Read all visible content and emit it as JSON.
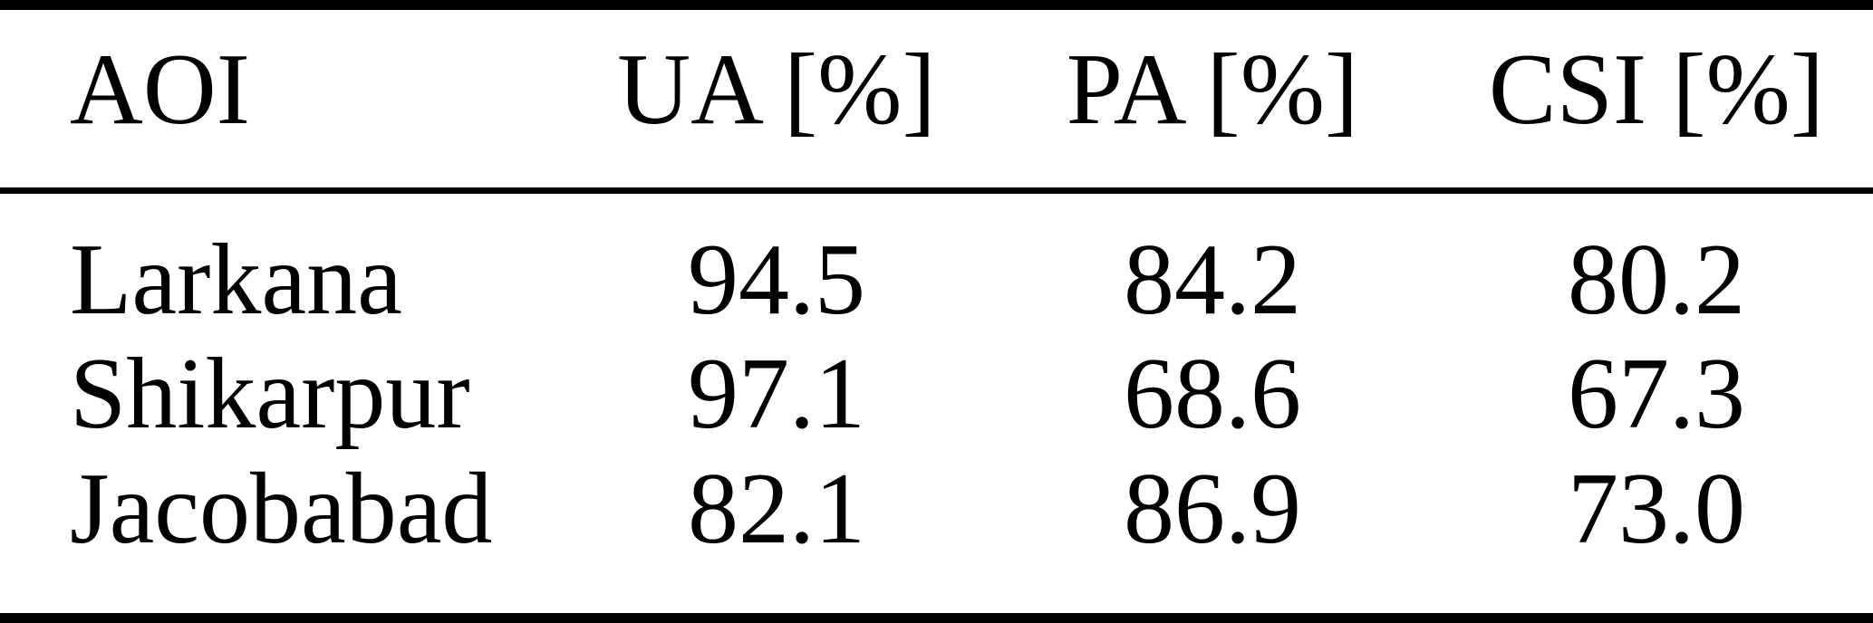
{
  "table": {
    "columns": [
      {
        "label": "AOI"
      },
      {
        "label": "UA [%]"
      },
      {
        "label": "PA [%]"
      },
      {
        "label": "CSI [%]"
      }
    ],
    "rows": [
      {
        "aoi": "Larkana",
        "ua": "94.5",
        "pa": "84.2",
        "csi": "80.2"
      },
      {
        "aoi": "Shikarpur",
        "ua": "97.1",
        "pa": "68.6",
        "csi": "67.3"
      },
      {
        "aoi": "Jacobabad",
        "ua": "82.1",
        "pa": "86.9",
        "csi": "73.0"
      }
    ]
  },
  "colors": {
    "text": "#000000",
    "background": "#ffffff",
    "rule": "#000000"
  },
  "chart_data": {
    "type": "table",
    "title": "",
    "columns": [
      "AOI",
      "UA [%]",
      "PA [%]",
      "CSI [%]"
    ],
    "rows": [
      [
        "Larkana",
        94.5,
        84.2,
        80.2
      ],
      [
        "Shikarpur",
        97.1,
        68.6,
        67.3
      ],
      [
        "Jacobabad",
        82.1,
        86.9,
        73.0
      ]
    ]
  }
}
